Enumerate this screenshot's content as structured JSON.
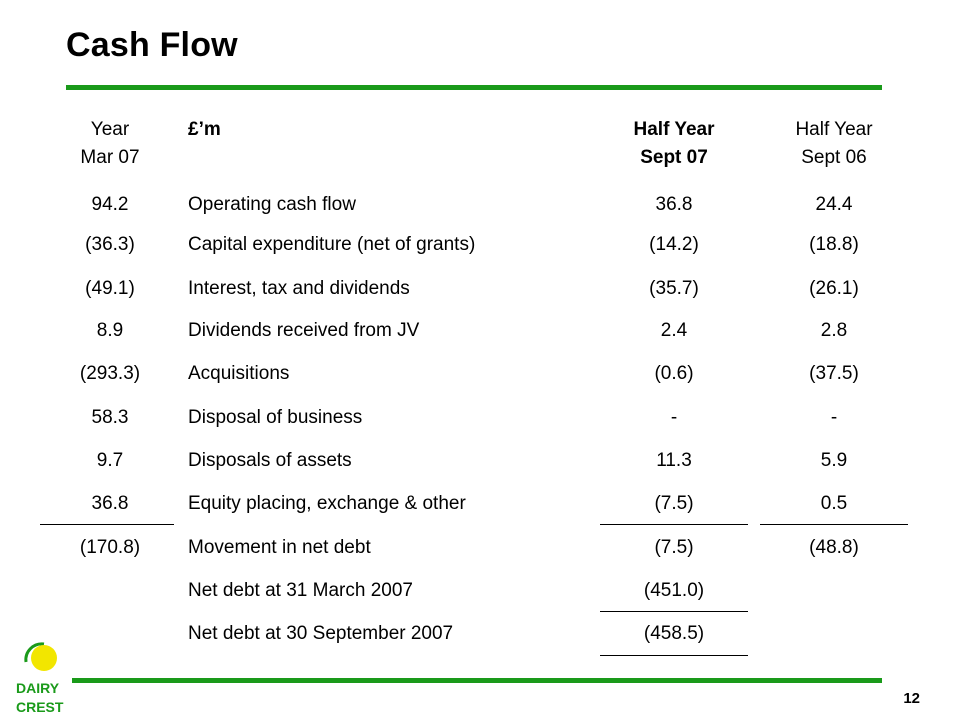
{
  "slide": {
    "title": "Cash Flow",
    "page_number": "12",
    "brand_color": "#1a9a1a",
    "logo": {
      "line1": "DAIRY",
      "line2": "CREST",
      "icon": "sun-icon",
      "sun_color": "#f2e600"
    }
  },
  "table": {
    "headers": {
      "col1": [
        "Year",
        "Mar 07"
      ],
      "col2": "£’m",
      "col3": [
        "Half Year",
        "Sept 07"
      ],
      "col4": [
        "Half Year",
        "Sept 06"
      ]
    },
    "rows": [
      {
        "year": "94.2",
        "label": "Operating cash flow",
        "h07": "36.8",
        "h06": "24.4"
      },
      {
        "year": "(36.3)",
        "label": "Capital expenditure (net of grants)",
        "h07": "(14.2)",
        "h06": "(18.8)"
      },
      {
        "year": "(49.1)",
        "label": "Interest, tax and dividends",
        "h07": "(35.7)",
        "h06": "(26.1)"
      },
      {
        "year": "8.9",
        "label": "Dividends received from JV",
        "h07": "2.4",
        "h06": "2.8"
      },
      {
        "year": "(293.3)",
        "label": "Acquisitions",
        "h07": "(0.6)",
        "h06": "(37.5)"
      },
      {
        "year": "58.3",
        "label": "Disposal of business",
        "h07": "-",
        "h06": "-"
      },
      {
        "year": "9.7",
        "label": "Disposals of assets",
        "h07": "11.3",
        "h06": "5.9"
      },
      {
        "year": "36.8",
        "label": "Equity placing, exchange & other",
        "h07": "(7.5)",
        "h06": "0.5"
      },
      {
        "year": "(170.8)",
        "label": "Movement in net debt",
        "h07": "(7.5)",
        "h06": "(48.8)"
      },
      {
        "year": "",
        "label": "Net debt at 31 March 2007",
        "h07": "(451.0)",
        "h06": ""
      },
      {
        "year": "",
        "label": "Net debt at 30 September 2007",
        "h07": "(458.5)",
        "h06": ""
      }
    ]
  }
}
